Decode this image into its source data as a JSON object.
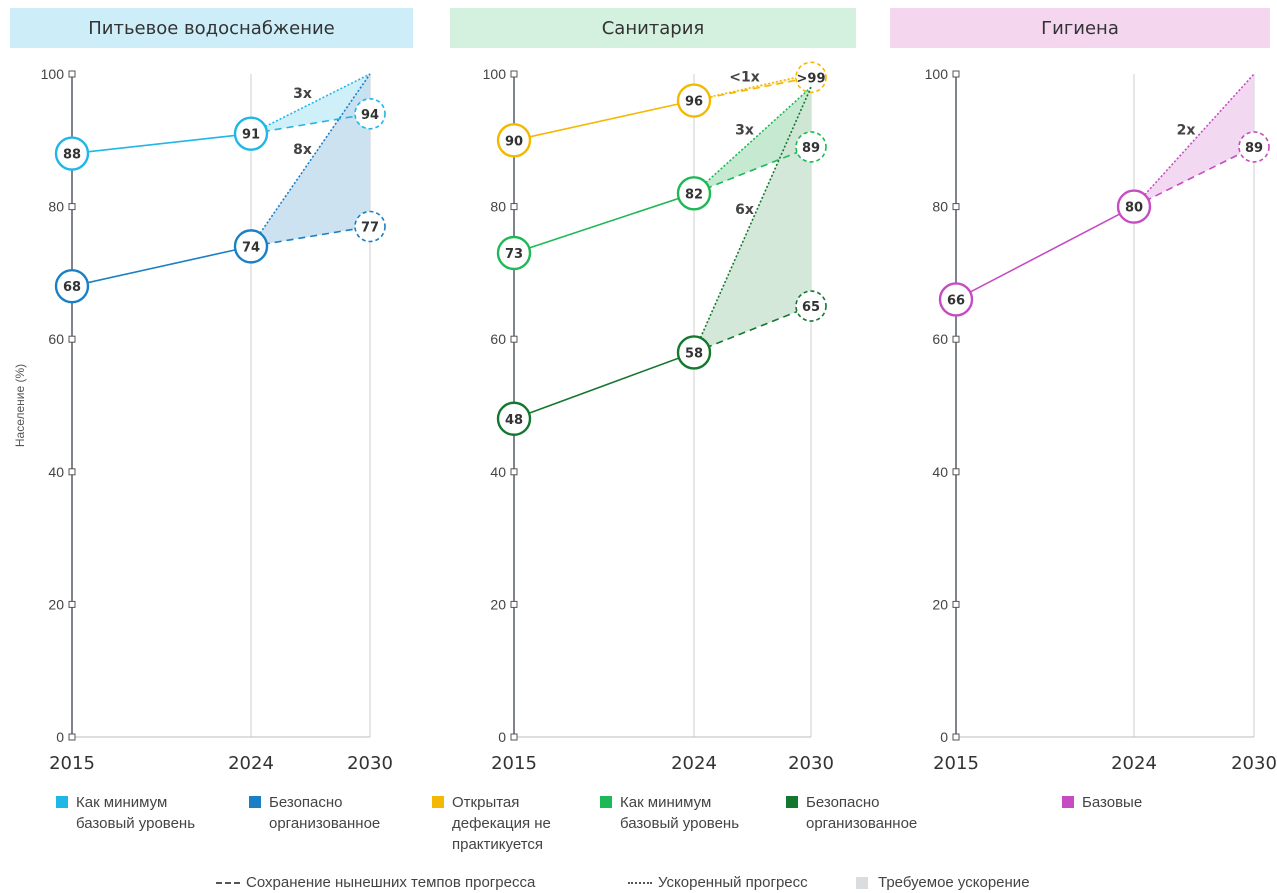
{
  "chart_data": {
    "type": "line",
    "ylabel": "Население (%)",
    "ylim": [
      0,
      100
    ],
    "yticks": [
      0,
      20,
      40,
      60,
      80,
      100
    ],
    "xticks": [
      "2015",
      "2024",
      "2030"
    ],
    "grid": "vertical gridline at 2024",
    "panels": [
      {
        "title": "Питьевое водоснабжение",
        "header_color": "#cdeef9",
        "series": [
          {
            "name": "Как минимум базовый уровень",
            "color": "#1fb6e8",
            "points": [
              [
                2015,
                88,
                "88"
              ],
              [
                2024,
                91,
                "91"
              ]
            ],
            "current_pace_2030": [
              94,
              "94"
            ],
            "accelerated_2030": 100,
            "multiplier": "3x",
            "fill": "#cbeef8"
          },
          {
            "name": "Безопасно организованное",
            "color": "#1a7fc4",
            "points": [
              [
                2015,
                68,
                "68"
              ],
              [
                2024,
                74,
                "74"
              ]
            ],
            "current_pace_2030": [
              77,
              "77"
            ],
            "accelerated_2030": 100,
            "multiplier": "8x",
            "fill": "#c6dff0"
          }
        ]
      },
      {
        "title": "Санитария",
        "header_color": "#d4f0de",
        "series": [
          {
            "name": "Открытая дефекация не практикуется",
            "color": "#f5b800",
            "points": [
              [
                2015,
                90,
                "90"
              ],
              [
                2024,
                96,
                "96"
              ]
            ],
            "current_pace_2030": [
              99.5,
              ">99"
            ],
            "accelerated_2030": 100,
            "multiplier": "<1x",
            "fill": "#fbefc4"
          },
          {
            "name": "Как минимум базовый уровень",
            "color": "#1db954",
            "points": [
              [
                2015,
                73,
                "73"
              ],
              [
                2024,
                82,
                "82"
              ]
            ],
            "current_pace_2030": [
              89,
              "89"
            ],
            "accelerated_2030": 98,
            "multiplier": "3x",
            "fill": "#bfe8cc"
          },
          {
            "name": "Безопасно организованное",
            "color": "#13772f",
            "points": [
              [
                2015,
                48,
                "48"
              ],
              [
                2024,
                58,
                "58"
              ]
            ],
            "current_pace_2030": [
              65,
              "65"
            ],
            "accelerated_2030": 98,
            "multiplier": "6x",
            "fill": "#cfe6d5"
          }
        ]
      },
      {
        "title": "Гигиена",
        "header_color": "#f4d6ef",
        "series": [
          {
            "name": "Базовые",
            "color": "#c54cc3",
            "points": [
              [
                2015,
                66,
                "66"
              ],
              [
                2024,
                80,
                "80"
              ]
            ],
            "current_pace_2030": [
              89,
              "89"
            ],
            "accelerated_2030": 100,
            "multiplier": "2x",
            "fill": "#f2d4ef"
          }
        ]
      }
    ]
  },
  "legend": [
    {
      "label": "Как минимум\nбазовый уровень",
      "color": "#1fb6e8"
    },
    {
      "label": "Безопасно\nорганизованное",
      "color": "#1a7fc4"
    },
    {
      "label": "Открытая\nдефекация не\nпрактикуется",
      "color": "#f5b800"
    },
    {
      "label": "Как минимум\nбазовый уровень",
      "color": "#1db954"
    },
    {
      "label": "Безопасно\nорганизованное",
      "color": "#13772f"
    },
    {
      "label": "Базовые",
      "color": "#c54cc3"
    }
  ],
  "bottom_legend": {
    "current_pace": "Сохранение нынешних темпов прогресса",
    "accelerated": "Ускоренный прогресс",
    "required": "Требуемое ускорение",
    "required_color": "#d9dde0"
  }
}
